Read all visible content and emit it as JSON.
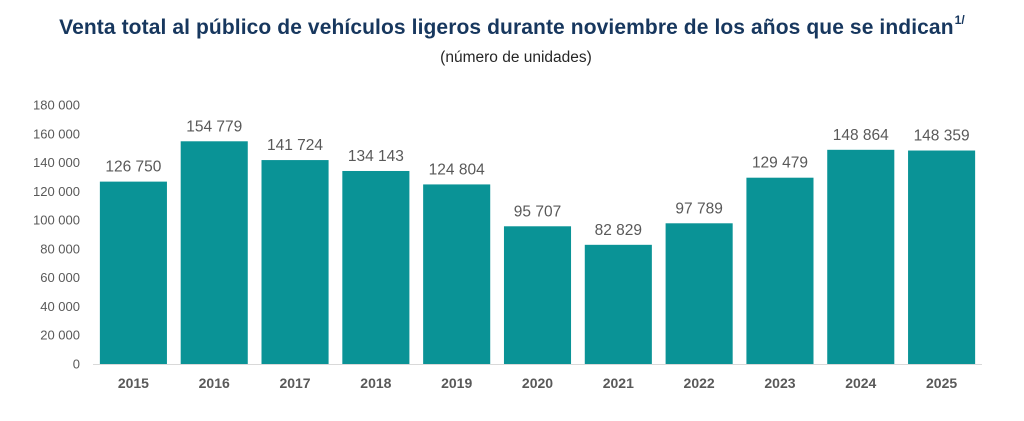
{
  "header": {
    "title": "Venta total al público de vehículos ligeros durante noviembre de los años que se indican",
    "title_footnote": "1/",
    "subtitle": "(número de unidades)"
  },
  "colors": {
    "bar": "#0a9396",
    "title": "#17375e",
    "axis": "#d9d9d9",
    "text": "#595959"
  },
  "chart_data": {
    "type": "bar",
    "title": "Venta total al público de vehículos ligeros durante noviembre de los años que se indican",
    "subtitle": "(número de unidades)",
    "xlabel": "",
    "ylabel": "",
    "categories": [
      "2015",
      "2016",
      "2017",
      "2018",
      "2019",
      "2020",
      "2021",
      "2022",
      "2023",
      "2024",
      "2025"
    ],
    "values": [
      126750,
      154779,
      141724,
      134143,
      124804,
      95707,
      82829,
      97789,
      129479,
      148864,
      148359
    ],
    "data_labels": [
      "126 750",
      "154 779",
      "141 724",
      "134 143",
      "124 804",
      "95 707",
      "82 829",
      "97 789",
      "129 479",
      "148 864",
      "148 359"
    ],
    "ylim": [
      0,
      180000
    ],
    "yticks": [
      0,
      20000,
      40000,
      60000,
      80000,
      100000,
      120000,
      140000,
      160000,
      180000
    ],
    "ytick_labels": [
      "0",
      "20 000",
      "40 000",
      "60 000",
      "80 000",
      "100 000",
      "120 000",
      "140 000",
      "160 000",
      "180 000"
    ],
    "grid": false,
    "legend": "none"
  }
}
